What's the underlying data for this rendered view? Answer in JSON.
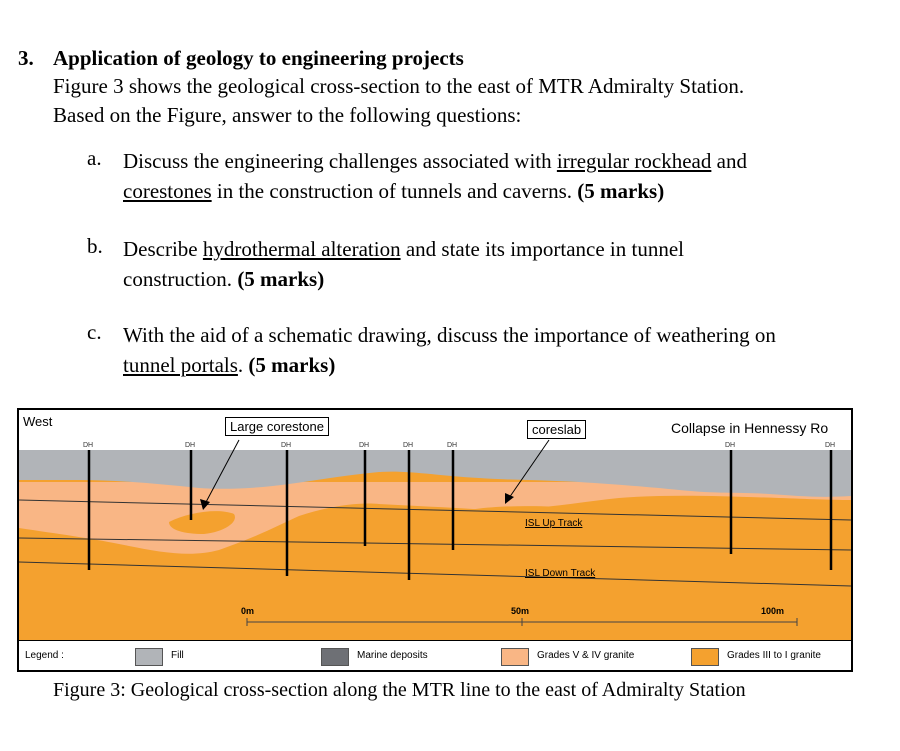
{
  "question": {
    "number": "3.",
    "title": "Application of geology to engineering projects",
    "intro_line1": "Figure 3 shows the geological cross-section to the east of MTR Admiralty Station.",
    "intro_line2": "Based on the Figure, answer to the following questions:"
  },
  "items": {
    "a": {
      "letter": "a.",
      "t1": "Discuss the engineering challenges associated with ",
      "u1": "irregular rockhead",
      "t2": " and",
      "u2": "corestones",
      "t3": " in the construction of tunnels and caverns. ",
      "marks": "(5 marks)"
    },
    "b": {
      "letter": "b.",
      "t1": "Describe ",
      "u1": "hydrothermal alteration",
      "t2": " and state its importance in tunnel",
      "t3": "construction. ",
      "marks": "(5 marks)"
    },
    "c": {
      "letter": "c.",
      "t1": "With the aid of a schematic drawing, discuss the importance of weathering on",
      "u1": "tunnel portals",
      "t2": ". ",
      "marks": "(5 marks)"
    }
  },
  "figure": {
    "west_label": "West",
    "title_right": "Collapse in Hennessy Ro",
    "callout_corestone": "Large corestone",
    "callout_coreslab": "coreslab",
    "track_up": "ISL Up Track",
    "track_down": "ISL Down Track",
    "dh_label": "DH",
    "scale": [
      "0m",
      "50m",
      "100m"
    ],
    "colors": {
      "fill": "#b1b4b8",
      "marine": "#6e7075",
      "grades_v_iv": "#f9b685",
      "grades_iii_i": "#f4a12f"
    },
    "legend": {
      "title": "Legend :",
      "fill": "Fill",
      "marine": "Marine deposits",
      "grades_v_iv": "Grades V & IV granite",
      "grades_iii_i": "Grades III to I granite"
    }
  },
  "caption": "Figure 3: Geological cross-section along the MTR line to the east of Admiralty Station"
}
